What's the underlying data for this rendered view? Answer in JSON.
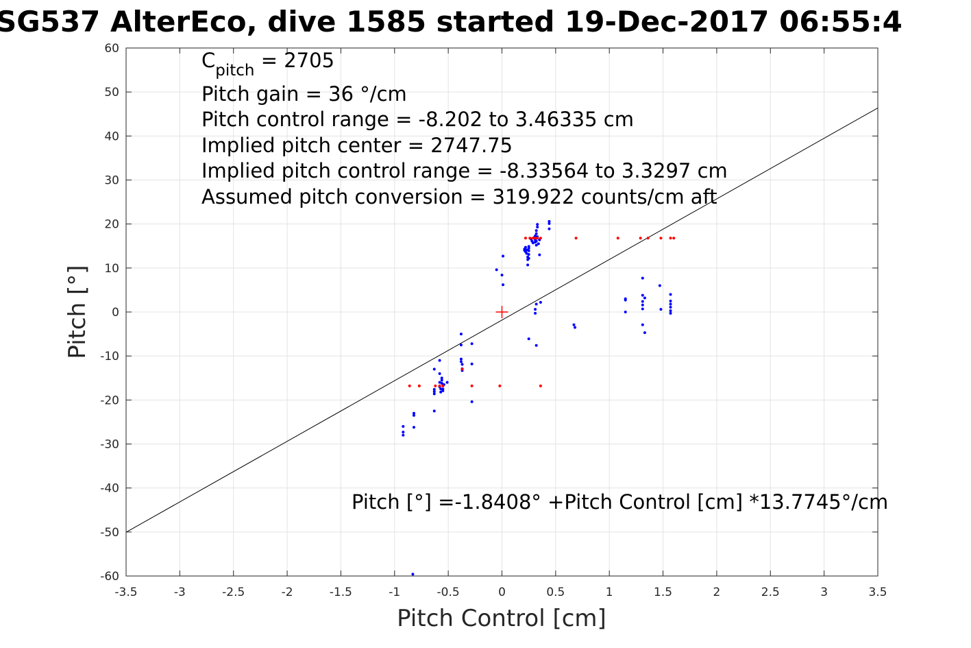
{
  "chart_data": {
    "type": "scatter",
    "title": "SG537 AlterEco, dive 1585 started 19-Dec-2017 06:55:4",
    "xlabel": "Pitch Control [cm]",
    "ylabel": "Pitch [°]",
    "xlim": [
      -3.5,
      3.5
    ],
    "ylim": [
      -60,
      60
    ],
    "xticks": [
      -3.5,
      -3,
      -2.5,
      -2,
      -1.5,
      -1,
      -0.5,
      0,
      0.5,
      1,
      1.5,
      2,
      2.5,
      3,
      3.5
    ],
    "yticks": [
      -60,
      -50,
      -40,
      -30,
      -20,
      -10,
      0,
      10,
      20,
      30,
      40,
      50,
      60
    ],
    "xtick_labels": [
      "-3.5",
      "-3",
      "-2.5",
      "-2",
      "-1.5",
      "-1",
      "-0.5",
      "0",
      "0.5",
      "1",
      "1.5",
      "2",
      "2.5",
      "3",
      "3.5"
    ],
    "ytick_labels": [
      "-60",
      "-50",
      "-40",
      "-30",
      "-20",
      "-10",
      "0",
      "10",
      "20",
      "30",
      "40",
      "50",
      "60"
    ],
    "grid": true,
    "annotations": {
      "c_pitch_main": "C",
      "c_pitch_sub": "pitch",
      "c_pitch_value": " = 2705",
      "lines": [
        "Pitch gain = 36 °/cm",
        "Pitch control range = -8.202 to 3.46335 cm",
        "Implied pitch center = 2747.75",
        "Implied pitch control range = -8.33564 to 3.3297 cm",
        "Assumed pitch conversion = 319.922 counts/cm aft"
      ],
      "fit_equation": "Pitch [°] =-1.8408° +Pitch Control [cm] *13.7745°/cm"
    },
    "fit_line": {
      "intercept": -1.8408,
      "slope": 13.7745,
      "color": "#000000"
    },
    "center_marker": {
      "x": 0,
      "y": 0,
      "color": "#ff0000"
    },
    "series": [
      {
        "color": "#0000ff",
        "points": [
          [
            -0.92,
            -26
          ],
          [
            -0.92,
            -27.3
          ],
          [
            -0.92,
            -28
          ],
          [
            -0.82,
            -23
          ],
          [
            -0.82,
            -23.5
          ],
          [
            -0.82,
            -26.2
          ],
          [
            -0.83,
            -59.6
          ],
          [
            -0.63,
            -13
          ],
          [
            -0.63,
            -17.6
          ],
          [
            -0.63,
            -18.1
          ],
          [
            -0.63,
            -18.6
          ],
          [
            -0.63,
            -22.5
          ],
          [
            -0.58,
            -11
          ],
          [
            -0.58,
            -14
          ],
          [
            -0.58,
            -16
          ],
          [
            -0.58,
            -17
          ],
          [
            -0.57,
            -17.5
          ],
          [
            -0.57,
            -18.2
          ],
          [
            -0.56,
            -15
          ],
          [
            -0.56,
            -15.5
          ],
          [
            -0.56,
            -16.2
          ],
          [
            -0.55,
            -16.8
          ],
          [
            -0.55,
            -17.5
          ],
          [
            -0.55,
            -17.9
          ],
          [
            -0.54,
            -16.5
          ],
          [
            -0.51,
            -16
          ],
          [
            -0.38,
            -5
          ],
          [
            -0.38,
            -7.5
          ],
          [
            -0.38,
            -10.7
          ],
          [
            -0.38,
            -11.3
          ],
          [
            -0.37,
            -11.9
          ],
          [
            -0.37,
            -12.9
          ],
          [
            -0.37,
            -13.3
          ],
          [
            -0.28,
            -7.2
          ],
          [
            -0.28,
            -11.8
          ],
          [
            -0.28,
            -20.4
          ],
          [
            -0.05,
            9.6
          ],
          [
            0,
            8.4
          ],
          [
            0.01,
            12.7
          ],
          [
            0.01,
            6.2
          ],
          [
            0.21,
            14
          ],
          [
            0.21,
            14.3
          ],
          [
            0.22,
            13.7
          ],
          [
            0.22,
            14.7
          ],
          [
            0.23,
            14.1
          ],
          [
            0.23,
            13.3
          ],
          [
            0.24,
            12.5
          ],
          [
            0.24,
            11.9
          ],
          [
            0.24,
            10.7
          ],
          [
            0.25,
            14.5
          ],
          [
            0.25,
            13.9
          ],
          [
            0.25,
            13.1
          ],
          [
            0.25,
            12.2
          ],
          [
            0.25,
            14.9
          ],
          [
            0.27,
            16.6
          ],
          [
            0.28,
            16.1
          ],
          [
            0.29,
            15.7
          ],
          [
            0.3,
            16.9
          ],
          [
            0.31,
            17.3
          ],
          [
            0.31,
            15.9
          ],
          [
            0.31,
            16.4
          ],
          [
            0.32,
            17.8
          ],
          [
            0.32,
            16.1
          ],
          [
            0.32,
            15.2
          ],
          [
            0.32,
            18.5
          ],
          [
            0.33,
            19.3
          ],
          [
            0.33,
            19.9
          ],
          [
            0.33,
            17.1
          ],
          [
            0.33,
            16.8
          ],
          [
            0.34,
            15.5
          ],
          [
            0.35,
            13
          ],
          [
            0.35,
            16.4
          ],
          [
            0.36,
            2.2
          ],
          [
            0.32,
            1.8
          ],
          [
            0.31,
            0.6
          ],
          [
            0.31,
            -0.3
          ],
          [
            0.25,
            -6.1
          ],
          [
            0.32,
            -7.6
          ],
          [
            0.44,
            18.9
          ],
          [
            0.44,
            20.1
          ],
          [
            0.44,
            20.6
          ],
          [
            0.67,
            -2.9
          ],
          [
            0.68,
            -3.5
          ],
          [
            1.15,
            2.7
          ],
          [
            1.15,
            3
          ],
          [
            1.15,
            0
          ],
          [
            1.31,
            7.7
          ],
          [
            1.31,
            3.8
          ],
          [
            1.31,
            2.4
          ],
          [
            1.31,
            1.6
          ],
          [
            1.31,
            0.7
          ],
          [
            1.31,
            -2.9
          ],
          [
            1.33,
            -4.7
          ],
          [
            1.33,
            3.2
          ],
          [
            1.47,
            6
          ],
          [
            1.48,
            0.6
          ],
          [
            1.57,
            4
          ],
          [
            1.57,
            2.5
          ],
          [
            1.57,
            1.8
          ],
          [
            1.57,
            1.1
          ],
          [
            1.57,
            0.3
          ],
          [
            1.57,
            -0.3
          ]
        ]
      },
      {
        "color": "#ff0000",
        "points": [
          [
            -0.86,
            -16.8
          ],
          [
            -0.77,
            -16.8
          ],
          [
            -0.62,
            -16.8
          ],
          [
            -0.58,
            -16.8
          ],
          [
            -0.55,
            -16.8
          ],
          [
            -0.37,
            -13
          ],
          [
            -0.28,
            -16.8
          ],
          [
            -0.02,
            -16.8
          ],
          [
            0.36,
            -16.8
          ],
          [
            0.22,
            16.8
          ],
          [
            0.26,
            16.8
          ],
          [
            0.29,
            16.8
          ],
          [
            0.31,
            16.8
          ],
          [
            0.33,
            16.8
          ],
          [
            0.36,
            16.8
          ],
          [
            0.69,
            16.8
          ],
          [
            1.08,
            16.8
          ],
          [
            1.29,
            16.8
          ],
          [
            1.36,
            16.8
          ],
          [
            1.48,
            16.8
          ],
          [
            1.57,
            16.8
          ],
          [
            1.6,
            16.8
          ]
        ]
      }
    ]
  }
}
